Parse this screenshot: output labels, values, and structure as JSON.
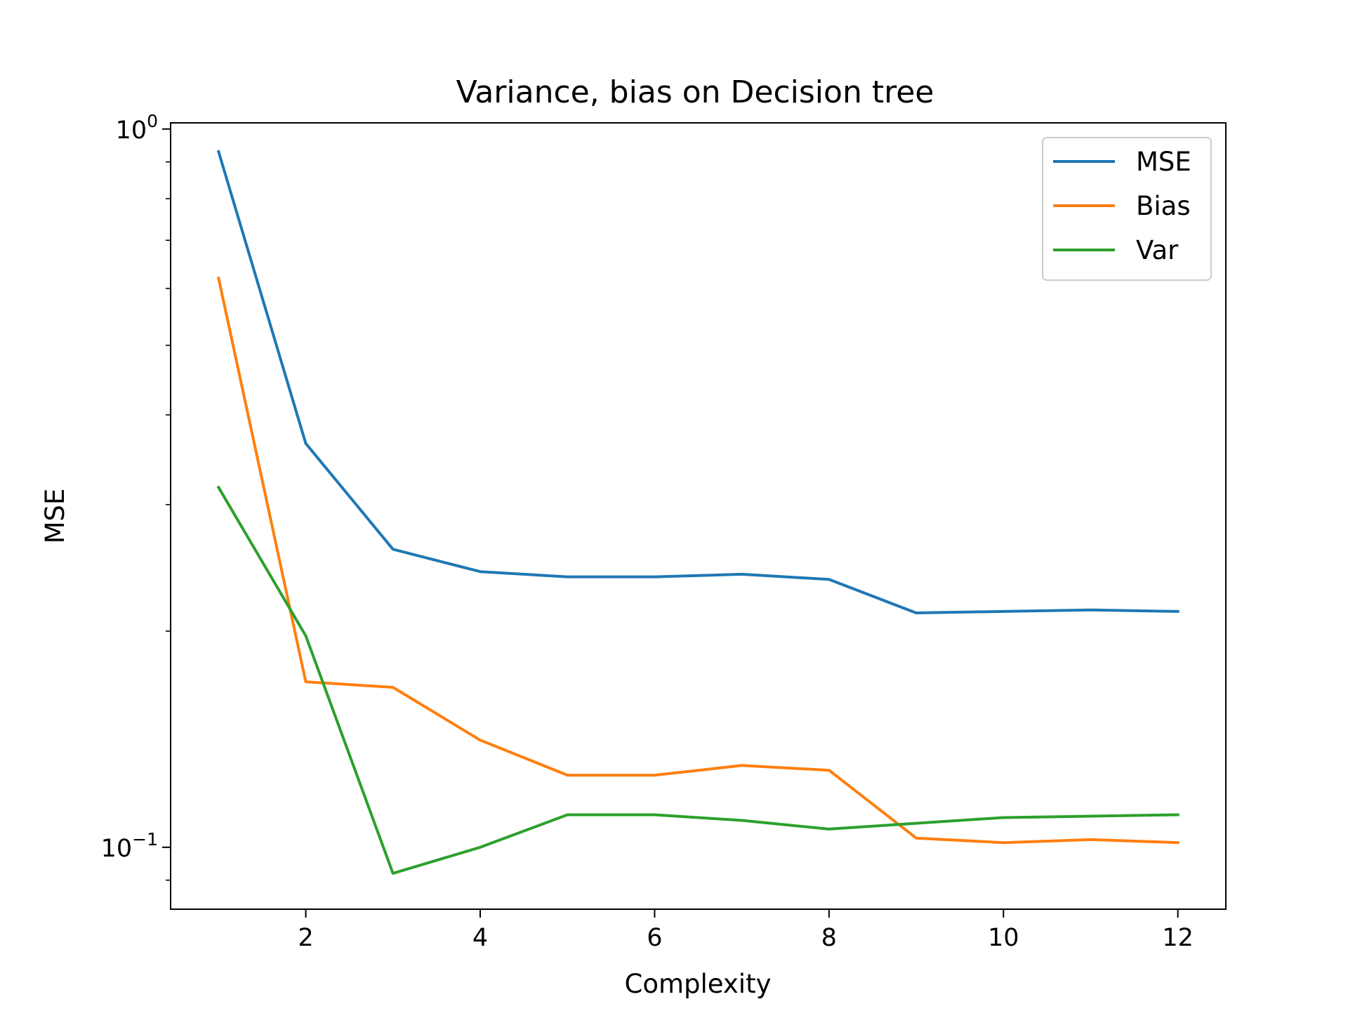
{
  "chart_data": {
    "type": "line",
    "title": "Variance, bias on Decision tree",
    "xlabel": "Complexity",
    "ylabel": "MSE",
    "yscale": "log",
    "xlim": [
      0.45,
      12.55
    ],
    "ylim": [
      0.082,
      1.02
    ],
    "x": [
      1,
      2,
      3,
      4,
      5,
      6,
      7,
      8,
      9,
      10,
      11,
      12
    ],
    "x_ticks": [
      2,
      4,
      6,
      8,
      10,
      12
    ],
    "y_ticks": [
      {
        "value": 1.0,
        "base": "10",
        "exp": "0"
      },
      {
        "value": 0.1,
        "base": "10",
        "exp": "−1"
      }
    ],
    "legend_position": "top-right",
    "grid": false,
    "series": [
      {
        "name": "MSE",
        "color": "#1f77b4",
        "values": [
          0.93,
          0.365,
          0.26,
          0.242,
          0.238,
          0.238,
          0.24,
          0.236,
          0.212,
          0.213,
          0.214,
          0.213
        ]
      },
      {
        "name": "Bias",
        "color": "#ff7f0e",
        "values": [
          0.62,
          0.17,
          0.167,
          0.141,
          0.126,
          0.126,
          0.13,
          0.128,
          0.103,
          0.1015,
          0.1025,
          0.1015
        ]
      },
      {
        "name": "Var",
        "color": "#2ca02c",
        "values": [
          0.317,
          0.197,
          0.092,
          0.1,
          0.111,
          0.111,
          0.109,
          0.106,
          0.108,
          0.11,
          0.1105,
          0.111
        ]
      }
    ]
  }
}
